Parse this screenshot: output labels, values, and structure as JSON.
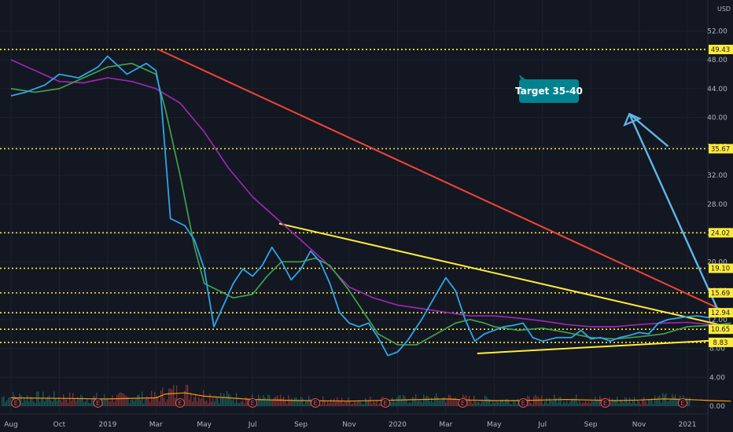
{
  "chart_data": {
    "type": "line",
    "currency": "USD",
    "ylim": [
      0,
      54
    ],
    "y_ticks": [
      "0.00",
      "4.00",
      "8.00",
      "12.00",
      "16.00",
      "20.00",
      "24.00",
      "28.00",
      "32.00",
      "36.00",
      "40.00",
      "44.00",
      "48.00",
      "52.00"
    ],
    "x_ticks": [
      "Aug",
      "Oct",
      "2019",
      "Mar",
      "May",
      "Jul",
      "Sep",
      "Nov",
      "2020",
      "Mar",
      "May",
      "Jul",
      "Sep",
      "Nov",
      "2021"
    ],
    "horizontal_levels": [
      "49.43",
      "35.67",
      "24.02",
      "19.10",
      "15.69",
      "12.94",
      "10.65",
      "8.83"
    ],
    "annotation": {
      "text": "Target 35-40",
      "color": "#00838f"
    },
    "earnings_marker": "E",
    "colors": {
      "price": "#2fa4e7",
      "ma_fast": "#43a047",
      "ma_slow": "#9c27b0",
      "downtrend": "#f44336",
      "wedge": "#ffeb3b",
      "levels": "#ffeb3b",
      "volume_up": "#26a69a",
      "volume_down": "#ef5350",
      "volume_ma": "#ff9800",
      "arrow": "#5fb6e8"
    },
    "series": [
      {
        "key": "price",
        "x": [
          0,
          0.3,
          0.7,
          1,
          1.4,
          1.8,
          2,
          2.4,
          2.8,
          3,
          3.1,
          3.3,
          3.6,
          3.8,
          4,
          4.2,
          4.4,
          4.6,
          4.8,
          5,
          5.2,
          5.4,
          5.6,
          5.8,
          6,
          6.2,
          6.4,
          6.6,
          6.8,
          7,
          7.2,
          7.4,
          7.6,
          7.8,
          8,
          8.2,
          8.5,
          8.8,
          9,
          9.2,
          9.4,
          9.6,
          9.8,
          10,
          10.2,
          10.4,
          10.6,
          10.8,
          11,
          11.3,
          11.6,
          11.8,
          12,
          12.2,
          12.4,
          12.6,
          12.8,
          13,
          13.2,
          13.4,
          13.6,
          13.8,
          14,
          14.2,
          14.4,
          14.6,
          14.9
        ],
        "y": [
          43,
          43.5,
          44.5,
          46,
          45.5,
          47,
          48.5,
          46,
          47.5,
          46.5,
          43,
          26,
          25,
          23,
          19,
          11,
          14,
          17,
          19,
          18,
          19.5,
          22,
          20,
          17.5,
          19,
          21.5,
          20,
          17,
          13,
          11.5,
          11,
          11.5,
          9.5,
          7,
          7.5,
          9,
          12,
          15.5,
          17.8,
          16,
          12,
          9,
          10,
          10.5,
          11,
          11.2,
          11.5,
          9.5,
          9,
          9.5,
          9.5,
          10.5,
          9.3,
          9.5,
          9,
          9.5,
          9.8,
          10.2,
          10,
          11.5,
          12,
          12.2,
          12.4,
          12.5,
          12.3,
          12.4,
          12.6
        ]
      },
      {
        "key": "ma_fast",
        "x": [
          0,
          0.5,
          1,
          1.5,
          2,
          2.5,
          3,
          3.2,
          3.5,
          3.8,
          4,
          4.3,
          4.6,
          5,
          5.3,
          5.6,
          6,
          6.3,
          6.6,
          7,
          7.3,
          7.6,
          8,
          8.4,
          8.8,
          9.2,
          9.5,
          9.8,
          10,
          10.5,
          11,
          11.5,
          12,
          12.5,
          13,
          13.5,
          14,
          14.5,
          14.9
        ],
        "y": [
          44,
          43.5,
          44,
          45.5,
          47,
          47.5,
          46,
          41,
          32,
          22,
          17,
          16,
          15,
          15.5,
          18,
          20,
          20,
          20.5,
          19.5,
          16,
          13,
          10,
          8.5,
          8.5,
          10,
          11.5,
          12,
          11.5,
          11,
          10.5,
          10.8,
          10.2,
          9.5,
          9.3,
          9.6,
          10,
          11,
          11.2,
          11.5
        ]
      },
      {
        "key": "ma_slow",
        "x": [
          0,
          0.5,
          1,
          1.5,
          2,
          2.5,
          3,
          3.5,
          4,
          4.5,
          5,
          5.5,
          6,
          6.5,
          7,
          7.5,
          8,
          8.5,
          9,
          9.5,
          10,
          10.5,
          11,
          11.5,
          12,
          12.5,
          13,
          13.5,
          14,
          14.5,
          14.9
        ],
        "y": [
          48,
          46.5,
          45,
          44.8,
          45.5,
          45,
          44,
          42,
          38,
          33,
          29,
          26,
          23,
          20,
          16.5,
          15,
          14,
          13.5,
          13,
          12.5,
          12.5,
          12.2,
          11.8,
          11.3,
          11,
          11,
          11.3,
          11.5,
          11.6,
          11.3,
          11
        ]
      },
      {
        "key": "volume_ma",
        "x": [
          0,
          1,
          2,
          3,
          3.2,
          3.6,
          4,
          4.5,
          5,
          6,
          7,
          8,
          8.5,
          9,
          9.5,
          10,
          10.5,
          11,
          11.5,
          12,
          12.5,
          13,
          13.5,
          14,
          14.5,
          14.9
        ],
        "y": [
          1.5,
          1.4,
          1.3,
          1.5,
          2.2,
          2.4,
          1.8,
          1.5,
          1.2,
          1,
          0.9,
          1.1,
          1.2,
          1.3,
          1.1,
          1,
          1,
          1.1,
          1.2,
          1.1,
          1,
          1.1,
          1.3,
          1.2,
          1,
          0.9
        ]
      }
    ],
    "trendlines": [
      {
        "key": "downtrend",
        "x": [
          3.05,
          14.95
        ],
        "y": [
          49.43,
          12.6
        ]
      },
      {
        "key": "wedge_upper",
        "x": [
          5.55,
          14.85
        ],
        "y": [
          25.3,
          11
        ]
      },
      {
        "key": "wedge_lower",
        "x": [
          9.65,
          14.85
        ],
        "y": [
          7.3,
          9.2
        ]
      }
    ],
    "target_arrow": {
      "x": [
        14.7,
        12.8,
        13.6
      ],
      "y": [
        12.3,
        40.5,
        36
      ]
    },
    "earnings_x": [
      0.1,
      1.8,
      3.5,
      5.0,
      6.3,
      7.75,
      9.35,
      10.6,
      12.3,
      13.9
    ]
  }
}
